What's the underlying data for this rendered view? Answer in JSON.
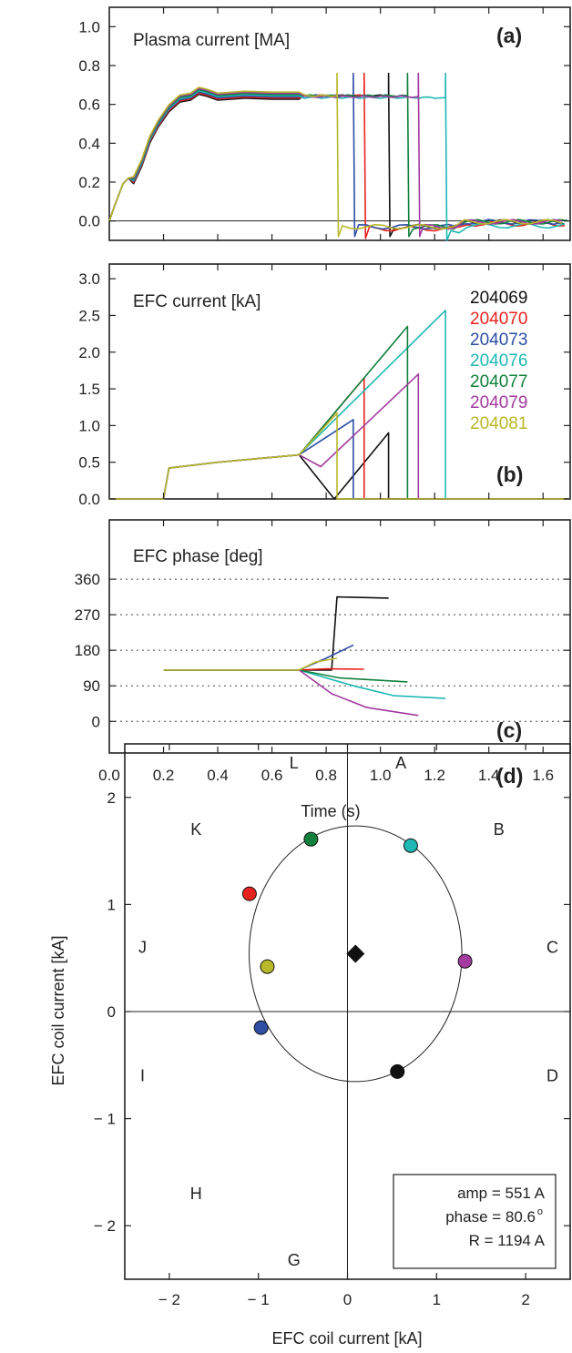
{
  "colors": {
    "204069": "#111111",
    "204070": "#e8231f",
    "204073": "#2e4ea3",
    "204076": "#1fb8b4",
    "204077": "#11803c",
    "204079": "#a23aa0",
    "204081": "#b8b82a"
  },
  "chart_data": [
    {
      "type": "line",
      "panel": "(a)",
      "title": "Plasma current [MA]",
      "xlim": [
        0.0,
        1.7
      ],
      "ylim": [
        -0.1,
        1.1
      ],
      "yticks": [
        "0.0",
        "0.2",
        "0.4",
        "0.6",
        "0.8",
        "1.0"
      ],
      "common_rampup": {
        "x": [
          0.0,
          0.02,
          0.05,
          0.07,
          0.09,
          0.12,
          0.15,
          0.18,
          0.22,
          0.26,
          0.3,
          0.33,
          0.36,
          0.4,
          0.5,
          0.6,
          0.7
        ],
        "y": [
          0.0,
          0.08,
          0.19,
          0.22,
          0.21,
          0.3,
          0.42,
          0.5,
          0.58,
          0.63,
          0.64,
          0.67,
          0.66,
          0.64,
          0.65,
          0.645,
          0.645
        ]
      },
      "series": [
        {
          "name": "204069",
          "disruption_time": 1.03,
          "flat": 0.645,
          "post": -0.03
        },
        {
          "name": "204070",
          "disruption_time": 0.94,
          "flat": 0.645,
          "post": -0.04
        },
        {
          "name": "204073",
          "disruption_time": 0.9,
          "flat": 0.645,
          "post": -0.03
        },
        {
          "name": "204076",
          "disruption_time": 1.24,
          "flat": 0.635,
          "post": -0.05
        },
        {
          "name": "204077",
          "disruption_time": 1.1,
          "flat": 0.645,
          "post": -0.03
        },
        {
          "name": "204079",
          "disruption_time": 1.14,
          "flat": 0.64,
          "post": -0.03
        },
        {
          "name": "204081",
          "disruption_time": 0.84,
          "flat": 0.645,
          "post": -0.03
        }
      ]
    },
    {
      "type": "line",
      "panel": "(b)",
      "title": "EFC current [kA]",
      "xlim": [
        0.0,
        1.7
      ],
      "ylim": [
        0.0,
        3.2
      ],
      "yticks": [
        "0.0",
        "0.5",
        "1.0",
        "1.5",
        "2.0",
        "2.5",
        "3.0"
      ],
      "series": [
        {
          "name": "204069",
          "x": [
            0.0,
            0.2,
            0.22,
            0.4,
            0.7,
            0.83,
            1.03,
            1.03,
            1.7
          ],
          "y": [
            0.0,
            0.0,
            0.42,
            0.5,
            0.6,
            0.0,
            0.9,
            0.0,
            0.0
          ]
        },
        {
          "name": "204070",
          "x": [
            0.0,
            0.2,
            0.22,
            0.4,
            0.7,
            0.94,
            0.94,
            1.7
          ],
          "y": [
            0.0,
            0.0,
            0.42,
            0.5,
            0.6,
            1.65,
            0.0,
            0.0
          ]
        },
        {
          "name": "204073",
          "x": [
            0.0,
            0.2,
            0.22,
            0.4,
            0.7,
            0.9,
            0.9,
            1.7
          ],
          "y": [
            0.0,
            0.0,
            0.42,
            0.5,
            0.6,
            1.08,
            0.0,
            0.0
          ]
        },
        {
          "name": "204076",
          "x": [
            0.0,
            0.2,
            0.22,
            0.4,
            0.7,
            1.24,
            1.24,
            1.7
          ],
          "y": [
            0.0,
            0.0,
            0.42,
            0.5,
            0.6,
            2.57,
            0.0,
            0.0
          ]
        },
        {
          "name": "204077",
          "x": [
            0.0,
            0.2,
            0.22,
            0.4,
            0.7,
            1.1,
            1.1,
            1.7
          ],
          "y": [
            0.0,
            0.0,
            0.42,
            0.5,
            0.6,
            2.35,
            0.0,
            0.0
          ]
        },
        {
          "name": "204079",
          "x": [
            0.0,
            0.2,
            0.22,
            0.4,
            0.7,
            0.78,
            1.14,
            1.14,
            1.7
          ],
          "y": [
            0.0,
            0.0,
            0.42,
            0.5,
            0.6,
            0.44,
            1.7,
            0.0,
            0.0
          ]
        },
        {
          "name": "204081",
          "x": [
            0.0,
            0.2,
            0.22,
            0.4,
            0.7,
            0.84,
            0.84,
            1.7
          ],
          "y": [
            0.0,
            0.0,
            0.42,
            0.5,
            0.6,
            1.17,
            0.0,
            0.0
          ]
        }
      ]
    },
    {
      "type": "line",
      "panel": "(c)",
      "title": "EFC phase [deg]",
      "xlabel": "Time (s)",
      "xlim": [
        0.0,
        1.7
      ],
      "ylim": [
        -80,
        510
      ],
      "yticks": [
        "0",
        "90",
        "180",
        "270",
        "360"
      ],
      "xticks": [
        "0.0",
        "0.2",
        "0.4",
        "0.6",
        "0.8",
        "1.0",
        "1.2",
        "1.4",
        "1.6"
      ],
      "dotted_grid_y": [
        0,
        90,
        180,
        270,
        360
      ],
      "series": [
        {
          "name": "204069",
          "x": [
            0.2,
            0.7,
            0.82,
            0.84,
            1.03
          ],
          "y": [
            130,
            130,
            130,
            315,
            312
          ]
        },
        {
          "name": "204070",
          "x": [
            0.2,
            0.7,
            0.8,
            0.94
          ],
          "y": [
            130,
            130,
            133,
            132
          ]
        },
        {
          "name": "204073",
          "x": [
            0.2,
            0.7,
            0.8,
            0.9
          ],
          "y": [
            130,
            130,
            160,
            193
          ]
        },
        {
          "name": "204076",
          "x": [
            0.2,
            0.7,
            0.9,
            1.05,
            1.24
          ],
          "y": [
            130,
            130,
            90,
            65,
            58
          ]
        },
        {
          "name": "204077",
          "x": [
            0.2,
            0.7,
            0.85,
            1.1
          ],
          "y": [
            130,
            130,
            110,
            100
          ]
        },
        {
          "name": "204079",
          "x": [
            0.2,
            0.7,
            0.82,
            0.95,
            1.14
          ],
          "y": [
            130,
            130,
            70,
            35,
            15
          ]
        },
        {
          "name": "204081",
          "x": [
            0.2,
            0.7,
            0.76,
            0.84
          ],
          "y": [
            130,
            130,
            150,
            160
          ]
        }
      ]
    },
    {
      "type": "scatter",
      "panel": "(d)",
      "xlabel": "EFC coil current [kA]",
      "ylabel": "EFC coil current [kA]",
      "xlim": [
        -2.5,
        2.5
      ],
      "ylim": [
        -2.5,
        2.5
      ],
      "xticks": [
        "− 2",
        "− 1",
        "0",
        "1",
        "2"
      ],
      "yticks": [
        "− 2",
        "− 1",
        "0",
        "1",
        "2"
      ],
      "regions": [
        {
          "label": "A",
          "x": 0.6,
          "y": 2.32
        },
        {
          "label": "B",
          "x": 1.7,
          "y": 1.7
        },
        {
          "label": "C",
          "x": 2.3,
          "y": 0.6
        },
        {
          "label": "D",
          "x": 2.3,
          "y": -0.6
        },
        {
          "label": "G",
          "x": -0.6,
          "y": -2.32
        },
        {
          "label": "H",
          "x": -1.7,
          "y": -1.7
        },
        {
          "label": "I",
          "x": -2.3,
          "y": -0.6
        },
        {
          "label": "J",
          "x": -2.3,
          "y": 0.6
        },
        {
          "label": "K",
          "x": -1.7,
          "y": 1.7
        },
        {
          "label": "L",
          "x": -0.6,
          "y": 2.32
        }
      ],
      "circle": {
        "cx": 0.09,
        "cy": 0.54,
        "r": 1.194
      },
      "center_marker": {
        "x": 0.09,
        "y": 0.54
      },
      "points": [
        {
          "name": "204069",
          "x": 0.56,
          "y": -0.56
        },
        {
          "name": "204070",
          "x": -1.1,
          "y": 1.1
        },
        {
          "name": "204073",
          "x": -0.97,
          "y": -0.15
        },
        {
          "name": "204076",
          "x": 0.71,
          "y": 1.55
        },
        {
          "name": "204077",
          "x": -0.41,
          "y": 1.61
        },
        {
          "name": "204079",
          "x": 1.32,
          "y": 0.47
        },
        {
          "name": "204081",
          "x": -0.9,
          "y": 0.42
        }
      ],
      "annotation": [
        "amp = 551 A",
        "phase = 80.6",
        "o",
        "R = 1194 A"
      ]
    }
  ],
  "legend": [
    "204069",
    "204070",
    "204073",
    "204076",
    "204077",
    "204079",
    "204081"
  ]
}
